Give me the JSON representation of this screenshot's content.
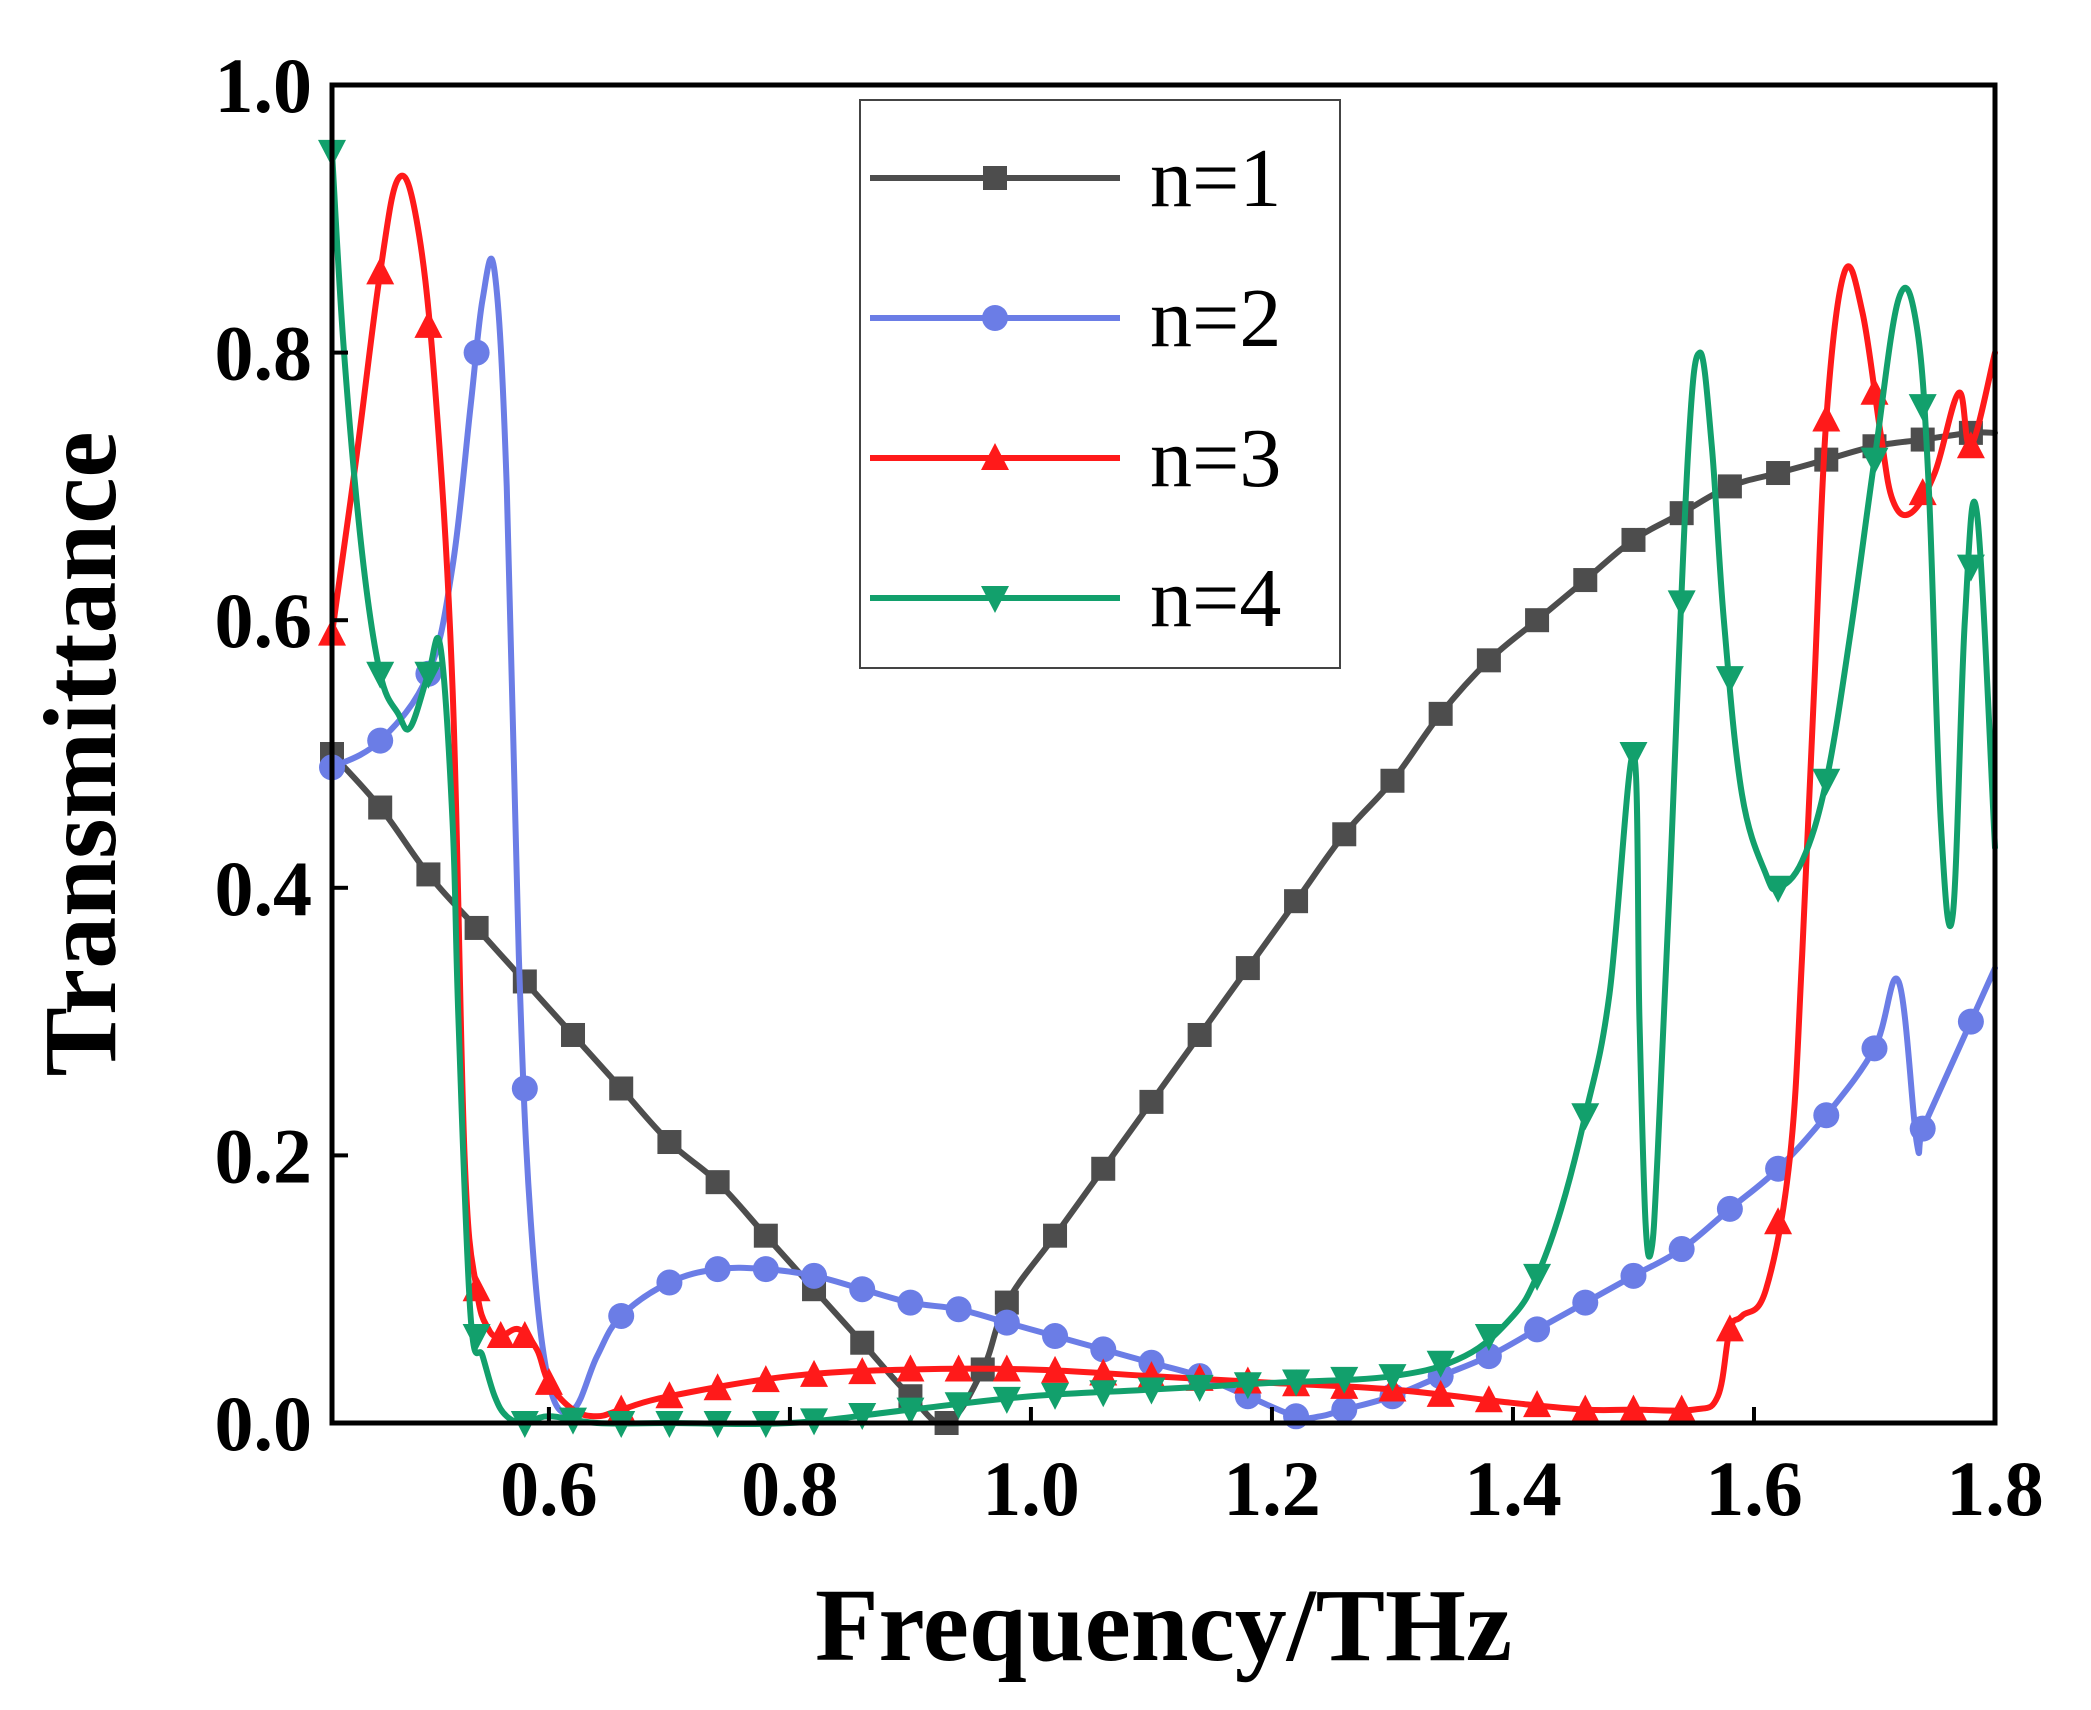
{
  "chart_data": {
    "type": "line",
    "title": "",
    "xlabel": "Frequency/THz",
    "ylabel": "Transmittance",
    "xlim": [
      0.42,
      1.8
    ],
    "ylim": [
      0.0,
      1.0
    ],
    "xticks": [
      0.6,
      0.8,
      1.0,
      1.2,
      1.4,
      1.6,
      1.8
    ],
    "xtick_labels": [
      "0.6",
      "0.8",
      "1.0",
      "1.2",
      "1.4",
      "1.6",
      "1.8"
    ],
    "yticks": [
      0.0,
      0.2,
      0.4,
      0.6,
      0.8,
      1.0
    ],
    "ytick_labels": [
      "0.0",
      "0.2",
      "0.4",
      "0.6",
      "0.8",
      "1.0"
    ],
    "grid": false,
    "legend_position": "top-center",
    "series": [
      {
        "name": "n=1",
        "color": "#4d4d4d",
        "marker": "square",
        "x": [
          0.42,
          0.46,
          0.5,
          0.54,
          0.58,
          0.62,
          0.66,
          0.7,
          0.74,
          0.78,
          0.82,
          0.86,
          0.9,
          0.93,
          0.96,
          0.98,
          1.02,
          1.06,
          1.1,
          1.14,
          1.18,
          1.22,
          1.26,
          1.3,
          1.34,
          1.38,
          1.42,
          1.46,
          1.5,
          1.54,
          1.58,
          1.62,
          1.66,
          1.7,
          1.74,
          1.78,
          1.8
        ],
        "y": [
          0.5,
          0.46,
          0.41,
          0.37,
          0.33,
          0.29,
          0.25,
          0.21,
          0.18,
          0.14,
          0.1,
          0.06,
          0.02,
          0.0,
          0.04,
          0.09,
          0.14,
          0.19,
          0.24,
          0.29,
          0.34,
          0.39,
          0.44,
          0.48,
          0.53,
          0.57,
          0.6,
          0.63,
          0.66,
          0.68,
          0.7,
          0.71,
          0.72,
          0.73,
          0.735,
          0.74,
          0.74
        ],
        "marker_x": [
          0.42,
          0.46,
          0.5,
          0.54,
          0.58,
          0.62,
          0.66,
          0.7,
          0.74,
          0.78,
          0.82,
          0.86,
          0.9,
          0.93,
          0.96,
          0.98,
          1.02,
          1.06,
          1.1,
          1.14,
          1.18,
          1.22,
          1.26,
          1.3,
          1.34,
          1.38,
          1.42,
          1.46,
          1.5,
          1.54,
          1.58,
          1.62,
          1.66,
          1.7,
          1.74,
          1.78
        ]
      },
      {
        "name": "n=2",
        "color": "#6b7de6",
        "marker": "circle",
        "x": [
          0.42,
          0.46,
          0.5,
          0.52,
          0.535,
          0.545,
          0.555,
          0.565,
          0.575,
          0.585,
          0.6,
          0.62,
          0.64,
          0.66,
          0.7,
          0.74,
          0.78,
          0.82,
          0.86,
          0.9,
          0.94,
          0.98,
          1.02,
          1.06,
          1.1,
          1.14,
          1.18,
          1.22,
          1.24,
          1.26,
          1.3,
          1.34,
          1.38,
          1.42,
          1.46,
          1.5,
          1.54,
          1.58,
          1.62,
          1.66,
          1.7,
          1.72,
          1.735,
          1.74,
          1.76,
          1.8
        ],
        "y": [
          0.49,
          0.51,
          0.56,
          0.64,
          0.76,
          0.84,
          0.86,
          0.7,
          0.35,
          0.15,
          0.03,
          0.01,
          0.05,
          0.08,
          0.105,
          0.115,
          0.115,
          0.11,
          0.1,
          0.09,
          0.085,
          0.075,
          0.065,
          0.055,
          0.045,
          0.035,
          0.02,
          0.005,
          0.005,
          0.01,
          0.02,
          0.035,
          0.05,
          0.07,
          0.09,
          0.11,
          0.13,
          0.16,
          0.19,
          0.23,
          0.28,
          0.33,
          0.21,
          0.22,
          0.26,
          0.34
        ],
        "marker_x": [
          0.42,
          0.46,
          0.5,
          0.54,
          0.58,
          0.66,
          0.7,
          0.74,
          0.78,
          0.82,
          0.86,
          0.9,
          0.94,
          0.98,
          1.02,
          1.06,
          1.1,
          1.14,
          1.18,
          1.22,
          1.26,
          1.3,
          1.34,
          1.38,
          1.42,
          1.46,
          1.5,
          1.54,
          1.58,
          1.62,
          1.66,
          1.7,
          1.74,
          1.78
        ]
      },
      {
        "name": "n=3",
        "color": "#ff1a1a",
        "marker": "triangle-up",
        "x": [
          0.42,
          0.44,
          0.46,
          0.475,
          0.49,
          0.505,
          0.52,
          0.53,
          0.54,
          0.55,
          0.56,
          0.575,
          0.59,
          0.6,
          0.62,
          0.64,
          0.66,
          0.7,
          0.8,
          0.9,
          1.0,
          1.1,
          1.2,
          1.3,
          1.4,
          1.46,
          1.5,
          1.55,
          1.57,
          1.58,
          1.59,
          1.61,
          1.63,
          1.64,
          1.65,
          1.66,
          1.675,
          1.69,
          1.705,
          1.715,
          1.73,
          1.75,
          1.77,
          1.78,
          1.8
        ],
        "y": [
          0.59,
          0.72,
          0.86,
          0.93,
          0.9,
          0.78,
          0.55,
          0.2,
          0.1,
          0.07,
          0.065,
          0.07,
          0.055,
          0.03,
          0.01,
          0.005,
          0.01,
          0.02,
          0.035,
          0.04,
          0.04,
          0.035,
          0.03,
          0.025,
          0.015,
          0.01,
          0.01,
          0.01,
          0.02,
          0.07,
          0.08,
          0.1,
          0.2,
          0.35,
          0.55,
          0.75,
          0.86,
          0.83,
          0.74,
          0.69,
          0.68,
          0.71,
          0.77,
          0.73,
          0.8
        ],
        "marker_x": [
          0.42,
          0.46,
          0.5,
          0.54,
          0.56,
          0.58,
          0.6,
          0.66,
          0.7,
          0.74,
          0.78,
          0.82,
          0.86,
          0.9,
          0.94,
          0.98,
          1.02,
          1.06,
          1.1,
          1.14,
          1.18,
          1.22,
          1.26,
          1.3,
          1.34,
          1.38,
          1.42,
          1.46,
          1.5,
          1.54,
          1.58,
          1.62,
          1.66,
          1.7,
          1.74,
          1.78
        ]
      },
      {
        "name": "n=4",
        "color": "#12a06c",
        "marker": "triangle-down",
        "x": [
          0.42,
          0.43,
          0.445,
          0.46,
          0.475,
          0.485,
          0.5,
          0.51,
          0.52,
          0.525,
          0.535,
          0.545,
          0.555,
          0.565,
          0.58,
          0.6,
          0.64,
          0.7,
          0.8,
          0.9,
          1.0,
          1.1,
          1.2,
          1.3,
          1.36,
          1.4,
          1.42,
          1.44,
          1.46,
          1.48,
          1.5,
          1.505,
          1.51,
          1.515,
          1.52,
          1.53,
          1.545,
          1.555,
          1.565,
          1.575,
          1.59,
          1.61,
          1.62,
          1.64,
          1.66,
          1.68,
          1.7,
          1.72,
          1.735,
          1.745,
          1.755,
          1.765,
          1.775,
          1.785,
          1.8
        ],
        "y": [
          0.95,
          0.8,
          0.65,
          0.56,
          0.53,
          0.52,
          0.56,
          0.58,
          0.45,
          0.3,
          0.08,
          0.05,
          0.02,
          0.005,
          0.0,
          0.005,
          0.0,
          0.0,
          0.0,
          0.01,
          0.02,
          0.025,
          0.03,
          0.035,
          0.05,
          0.08,
          0.11,
          0.16,
          0.23,
          0.32,
          0.5,
          0.3,
          0.15,
          0.13,
          0.2,
          0.4,
          0.72,
          0.8,
          0.73,
          0.6,
          0.47,
          0.41,
          0.4,
          0.42,
          0.48,
          0.59,
          0.72,
          0.84,
          0.82,
          0.7,
          0.45,
          0.38,
          0.6,
          0.68,
          0.43
        ],
        "marker_x": [
          0.42,
          0.46,
          0.5,
          0.54,
          0.58,
          0.62,
          0.66,
          0.7,
          0.74,
          0.78,
          0.82,
          0.86,
          0.9,
          0.94,
          0.98,
          1.02,
          1.06,
          1.1,
          1.14,
          1.18,
          1.22,
          1.26,
          1.3,
          1.34,
          1.38,
          1.42,
          1.46,
          1.5,
          1.54,
          1.58,
          1.62,
          1.66,
          1.7,
          1.74,
          1.78
        ]
      }
    ]
  }
}
